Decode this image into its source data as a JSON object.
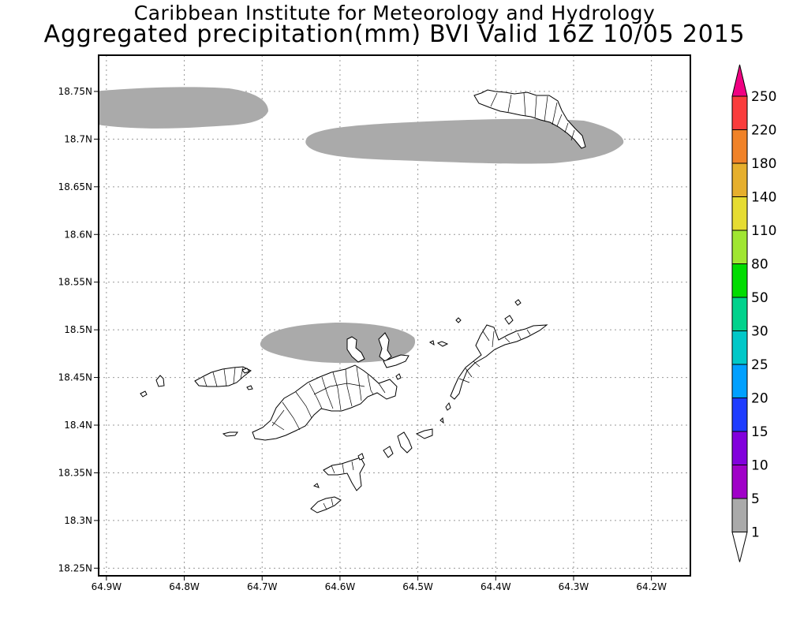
{
  "header": {
    "line1": "Caribbean Institute for Meteorology and Hydrology",
    "line2": "Aggregated precipitation(mm) BVI Valid 16Z 10/05 2015"
  },
  "map": {
    "lat_labels": [
      "18.75N",
      "18.7N",
      "18.65N",
      "18.6N",
      "18.55N",
      "18.5N",
      "18.45N",
      "18.4N",
      "18.35N",
      "18.3N",
      "18.25N"
    ],
    "lon_labels": [
      "64.9W",
      "64.8W",
      "64.7W",
      "64.6W",
      "64.5W",
      "64.4W",
      "64.3W",
      "64.2W"
    ],
    "lon_range": [
      -64.91,
      -64.15
    ],
    "lat_range": [
      18.242,
      18.788
    ],
    "grid": true,
    "precip_areas": [
      {
        "name": "northwest-rain-band",
        "value_mm": "1-5"
      },
      {
        "name": "north-rain-band",
        "value_mm": "1-5"
      },
      {
        "name": "central-rain-cell",
        "value_mm": "1-5"
      }
    ],
    "colors": {
      "precip_fill": "#aaaaaa",
      "grid": "#999999",
      "coast": "#000000"
    }
  },
  "legend": {
    "labels": [
      "1",
      "5",
      "10",
      "15",
      "20",
      "25",
      "30",
      "50",
      "80",
      "110",
      "140",
      "180",
      "220",
      "250"
    ],
    "colors": [
      "#ffffff",
      "#aaaaaa",
      "#a000c8",
      "#8200dc",
      "#1e3cff",
      "#00a0ff",
      "#00c8c8",
      "#00d28c",
      "#00dc00",
      "#a0e632",
      "#e6dc32",
      "#e6af2d",
      "#f08228",
      "#fa3c3c",
      "#f00082"
    ]
  }
}
